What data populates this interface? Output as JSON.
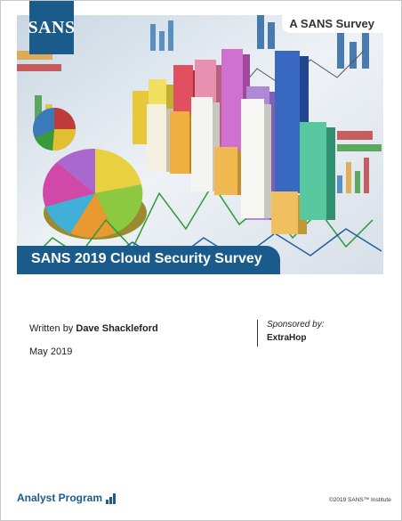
{
  "header": {
    "logo_text": "SANS",
    "survey_tag": "A SANS Survey"
  },
  "cover_image": {
    "icon": "cover-charts-illustration"
  },
  "title": "SANS 2019 Cloud Security Survey",
  "byline": {
    "written_by_label": "Written by",
    "author": "Dave Shackleford",
    "date": "May 2019"
  },
  "sponsor": {
    "label": "Sponsored by:",
    "name": "ExtraHop"
  },
  "footer": {
    "program": "Analyst Program",
    "program_icon": "bar-chart-icon",
    "copyright": "©2019 SANS™ Institute"
  },
  "colors": {
    "brand_blue": "#1b5b8c"
  }
}
